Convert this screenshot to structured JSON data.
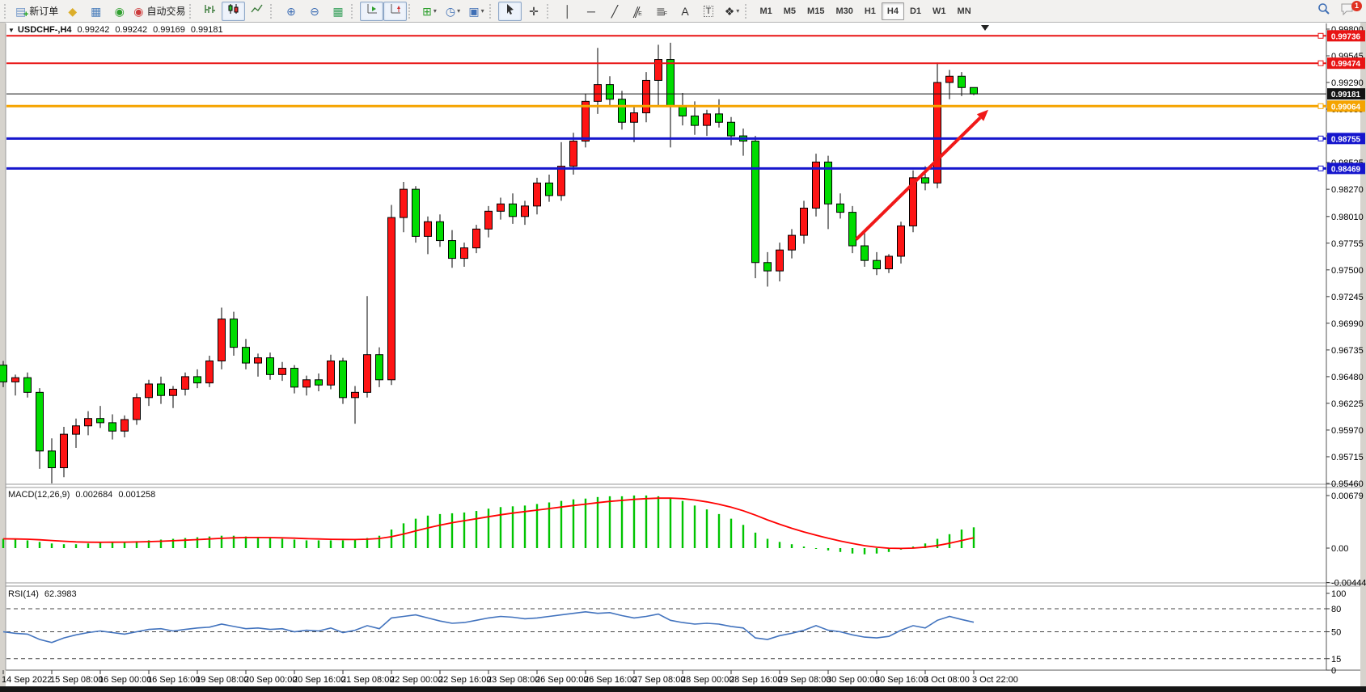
{
  "toolbar": {
    "new_order_label": "新订单",
    "autotrading_label": "自动交易",
    "timeframes": [
      "M1",
      "M5",
      "M15",
      "M30",
      "H1",
      "H4",
      "D1",
      "W1",
      "MN"
    ],
    "active_timeframe": "H4",
    "notification_count": "1",
    "groups": [
      {
        "items": [
          {
            "name": "new-order-button",
            "icon": "new-order-icon",
            "color": "#6f95c8",
            "label_key": "new_order_label",
            "plus": true
          },
          {
            "name": "favorites-button",
            "icon": "favorites-icon",
            "color": "#dcae2a"
          },
          {
            "name": "market-window-button",
            "icon": "market-window-icon",
            "color": "#4a7ebb"
          },
          {
            "name": "signals-button",
            "icon": "signals-icon",
            "color": "#2fa02f"
          },
          {
            "name": "autotrading-button",
            "icon": "autotrading-icon",
            "color": "#cc3b3b",
            "label_key": "autotrading_label"
          }
        ]
      },
      {
        "items": [
          {
            "name": "bar-chart-button",
            "svg": "bars"
          },
          {
            "name": "candlestick-chart-button",
            "svg": "candles",
            "pressed": true
          },
          {
            "name": "line-chart-button",
            "svg": "line"
          }
        ]
      },
      {
        "items": [
          {
            "name": "zoom-in-button",
            "icon": "zoom-in-icon",
            "color": "#3f6fb5"
          },
          {
            "name": "zoom-out-button",
            "icon": "zoom-out-icon",
            "color": "#3f6fb5"
          },
          {
            "name": "tile-windows-button",
            "icon": "tile-windows-icon",
            "color": "#37a05c"
          }
        ]
      },
      {
        "items": [
          {
            "name": "auto-scroll-button",
            "svg": "autoscroll",
            "pressed": true
          },
          {
            "name": "chart-shift-button",
            "svg": "chartshift",
            "pressed": true
          }
        ]
      },
      {
        "items": [
          {
            "name": "indicators-button",
            "icon": "indicators-icon",
            "color": "#2fa02f",
            "caret": true
          },
          {
            "name": "periods-button",
            "icon": "periods-icon",
            "color": "#3f6fb5",
            "caret": true
          },
          {
            "name": "templates-button",
            "icon": "templates-icon",
            "color": "#3f6fb5",
            "caret": true
          }
        ]
      },
      {
        "items": [
          {
            "name": "cursor-button",
            "svg": "cursor",
            "pressed": true
          },
          {
            "name": "crosshair-button",
            "icon": "crosshair-icon",
            "color": "#333333"
          }
        ]
      },
      {
        "items": [
          {
            "name": "vertical-line-button",
            "icon": "vertical-line-icon",
            "color": "#333333"
          },
          {
            "name": "horizontal-line-button",
            "icon": "horizontal-line-icon",
            "color": "#333333"
          },
          {
            "name": "trendline-button",
            "icon": "trendline-icon",
            "color": "#333333"
          },
          {
            "name": "channel-button",
            "icon": "channel-icon",
            "color": "#333333",
            "sub": "E",
            "skew": true
          },
          {
            "name": "fibonacci-button",
            "icon": "fibonacci-icon",
            "color": "#333333",
            "sub": "F"
          },
          {
            "name": "text-button",
            "icon": "text-icon",
            "color": "#333333"
          },
          {
            "name": "text-label-button",
            "icon": "text-label-icon",
            "color": "#333333",
            "boxed": true
          },
          {
            "name": "shapes-button",
            "icon": "shapes-icon",
            "color": "#333333",
            "caret": true
          }
        ]
      }
    ],
    "icons": {
      "new-order-icon": "▤",
      "favorites-icon": "◆",
      "market-window-icon": "▦",
      "signals-icon": "◉",
      "autotrading-icon": "◉",
      "zoom-in-icon": "⊕",
      "zoom-out-icon": "⊖",
      "tile-windows-icon": "▦",
      "indicators-icon": "⊞",
      "periods-icon": "◷",
      "templates-icon": "▣",
      "crosshair-icon": "✛",
      "vertical-line-icon": "│",
      "horizontal-line-icon": "─",
      "trendline-icon": "╱",
      "channel-icon": "∥",
      "fibonacci-icon": "≣",
      "text-icon": "A",
      "text-label-icon": "T",
      "shapes-icon": "❖",
      "caret-icon": "▾",
      "dropdown-icon": "▼"
    }
  },
  "header": {
    "dropdown": "▼",
    "symbol_period": "USDCHF-,H4",
    "open": "0.99242",
    "high": "0.99242",
    "low": "0.99169",
    "close": "0.99181"
  },
  "indicator_labels": {
    "macd_name": "MACD(12,26,9)",
    "macd_main": "0.002684",
    "macd_signal": "0.001258",
    "rsi_name": "RSI(14)",
    "rsi_value": "62.3983"
  },
  "chart_data": {
    "type": "candlestick",
    "symbol": "USDCHF-",
    "timeframe": "H4",
    "up_color": "#fe1414",
    "down_color": "#00dc00",
    "wick_color": "#000000",
    "price_range": [
      0.9546,
      0.998
    ],
    "price_axis_ticks": [
      "0.99800",
      "0.99545",
      "0.99290",
      "0.99035",
      "0.98780",
      "0.98525",
      "0.98270",
      "0.98010",
      "0.97755",
      "0.97500",
      "0.97245",
      "0.96990",
      "0.96735",
      "0.96480",
      "0.96225",
      "0.95970",
      "0.95715",
      "0.95460"
    ],
    "x_labels": [
      "14 Sep 2022",
      "15 Sep 08:00",
      "16 Sep 00:00",
      "16 Sep 16:00",
      "19 Sep 08:00",
      "20 Sep 00:00",
      "20 Sep 16:00",
      "21 Sep 08:00",
      "22 Sep 00:00",
      "22 Sep 16:00",
      "23 Sep 08:00",
      "26 Sep 00:00",
      "26 Sep 16:00",
      "27 Sep 08:00",
      "28 Sep 00:00",
      "28 Sep 16:00",
      "29 Sep 08:00",
      "30 Sep 00:00",
      "30 Sep 16:00",
      "3 Oct 08:00",
      "3 Oct 22:00"
    ],
    "candles_per_label": 4,
    "ohlc": [
      [
        0.9659,
        0.9663,
        0.9638,
        0.9643
      ],
      [
        0.9643,
        0.965,
        0.963,
        0.9647
      ],
      [
        0.9647,
        0.9652,
        0.9628,
        0.9633
      ],
      [
        0.9633,
        0.9637,
        0.956,
        0.9577
      ],
      [
        0.9577,
        0.9589,
        0.9546,
        0.9561
      ],
      [
        0.9561,
        0.96,
        0.9552,
        0.9593
      ],
      [
        0.9593,
        0.9608,
        0.958,
        0.9601
      ],
      [
        0.9601,
        0.9615,
        0.9592,
        0.9608
      ],
      [
        0.9608,
        0.962,
        0.9599,
        0.9604
      ],
      [
        0.9604,
        0.9612,
        0.9588,
        0.9596
      ],
      [
        0.9596,
        0.9611,
        0.959,
        0.9607
      ],
      [
        0.9607,
        0.9632,
        0.9602,
        0.9628
      ],
      [
        0.9628,
        0.9645,
        0.962,
        0.9641
      ],
      [
        0.9641,
        0.9648,
        0.9622,
        0.963
      ],
      [
        0.963,
        0.9639,
        0.9618,
        0.9636
      ],
      [
        0.9636,
        0.9652,
        0.963,
        0.9648
      ],
      [
        0.9648,
        0.9655,
        0.9637,
        0.9642
      ],
      [
        0.9642,
        0.9668,
        0.9638,
        0.9663
      ],
      [
        0.9663,
        0.9714,
        0.9655,
        0.9703
      ],
      [
        0.9703,
        0.971,
        0.9668,
        0.9676
      ],
      [
        0.9676,
        0.9684,
        0.9655,
        0.9661
      ],
      [
        0.9661,
        0.967,
        0.9648,
        0.9666
      ],
      [
        0.9666,
        0.9671,
        0.9645,
        0.965
      ],
      [
        0.965,
        0.9662,
        0.9644,
        0.9656
      ],
      [
        0.9656,
        0.9659,
        0.9632,
        0.9638
      ],
      [
        0.9638,
        0.9649,
        0.963,
        0.9645
      ],
      [
        0.9645,
        0.9651,
        0.9634,
        0.964
      ],
      [
        0.964,
        0.9669,
        0.9636,
        0.9663
      ],
      [
        0.9663,
        0.9666,
        0.9622,
        0.9628
      ],
      [
        0.9628,
        0.9639,
        0.9603,
        0.9633
      ],
      [
        0.9633,
        0.9725,
        0.9628,
        0.9669
      ],
      [
        0.9669,
        0.9676,
        0.9638,
        0.9645
      ],
      [
        0.9645,
        0.9812,
        0.964,
        0.98
      ],
      [
        0.98,
        0.9834,
        0.9786,
        0.9827
      ],
      [
        0.9827,
        0.983,
        0.9776,
        0.9782
      ],
      [
        0.9782,
        0.9801,
        0.9765,
        0.9796
      ],
      [
        0.9796,
        0.9803,
        0.9772,
        0.9778
      ],
      [
        0.9778,
        0.9788,
        0.9752,
        0.9761
      ],
      [
        0.9761,
        0.9776,
        0.9753,
        0.9771
      ],
      [
        0.9771,
        0.9793,
        0.9766,
        0.9789
      ],
      [
        0.9789,
        0.9811,
        0.9781,
        0.9806
      ],
      [
        0.9806,
        0.9819,
        0.9798,
        0.9813
      ],
      [
        0.9813,
        0.9823,
        0.9794,
        0.9801
      ],
      [
        0.9801,
        0.9816,
        0.9793,
        0.9811
      ],
      [
        0.9811,
        0.9838,
        0.9803,
        0.9833
      ],
      [
        0.9833,
        0.9841,
        0.9815,
        0.9821
      ],
      [
        0.9821,
        0.9872,
        0.9816,
        0.9849
      ],
      [
        0.9849,
        0.9881,
        0.9841,
        0.9873
      ],
      [
        0.9873,
        0.9918,
        0.9867,
        0.9911
      ],
      [
        0.9911,
        0.9962,
        0.9899,
        0.9927
      ],
      [
        0.9927,
        0.9935,
        0.9907,
        0.9913
      ],
      [
        0.9913,
        0.9921,
        0.9884,
        0.9891
      ],
      [
        0.9891,
        0.9906,
        0.9872,
        0.99
      ],
      [
        0.99,
        0.9939,
        0.9891,
        0.9931
      ],
      [
        0.9931,
        0.9965,
        0.9906,
        0.9951
      ],
      [
        0.9951,
        0.9967,
        0.9867,
        0.9906
      ],
      [
        0.9906,
        0.9919,
        0.9888,
        0.9897
      ],
      [
        0.9897,
        0.9911,
        0.9879,
        0.9888
      ],
      [
        0.9888,
        0.9903,
        0.9878,
        0.9899
      ],
      [
        0.9899,
        0.9913,
        0.9886,
        0.9891
      ],
      [
        0.9891,
        0.9896,
        0.9869,
        0.9878
      ],
      [
        0.9878,
        0.9885,
        0.9859,
        0.9873
      ],
      [
        0.9873,
        0.9878,
        0.9742,
        0.9757
      ],
      [
        0.9757,
        0.9767,
        0.9734,
        0.9749
      ],
      [
        0.9749,
        0.9776,
        0.9739,
        0.9769
      ],
      [
        0.9769,
        0.9789,
        0.9761,
        0.9783
      ],
      [
        0.9783,
        0.9816,
        0.9775,
        0.9809
      ],
      [
        0.9809,
        0.9861,
        0.9801,
        0.9853
      ],
      [
        0.9853,
        0.9859,
        0.9789,
        0.9813
      ],
      [
        0.9813,
        0.9823,
        0.9799,
        0.9805
      ],
      [
        0.9805,
        0.9811,
        0.9766,
        0.9773
      ],
      [
        0.9773,
        0.9785,
        0.9753,
        0.9759
      ],
      [
        0.9759,
        0.9767,
        0.9745,
        0.9751
      ],
      [
        0.9751,
        0.9765,
        0.9747,
        0.9763
      ],
      [
        0.9763,
        0.9796,
        0.9756,
        0.9792
      ],
      [
        0.9792,
        0.9845,
        0.9786,
        0.9838
      ],
      [
        0.9838,
        0.9849,
        0.9826,
        0.9833
      ],
      [
        0.9833,
        0.9948,
        0.9828,
        0.9929
      ],
      [
        0.9929,
        0.9941,
        0.9913,
        0.9935
      ],
      [
        0.9935,
        0.9939,
        0.9916,
        0.99242
      ],
      [
        0.99242,
        0.99242,
        0.99169,
        0.99181
      ]
    ],
    "h_lines": [
      {
        "price": 0.99736,
        "label": "0.99736",
        "color": "#e81414",
        "width": 2
      },
      {
        "price": 0.99474,
        "label": "0.99474",
        "color": "#e81414",
        "width": 2
      },
      {
        "price": 0.99181,
        "label": "0.99181",
        "color": "#141414",
        "width": 1
      },
      {
        "price": 0.99064,
        "label": "0.99064",
        "color": "#f5a400",
        "width": 3
      },
      {
        "price": 0.98755,
        "label": "0.98755",
        "color": "#1616cd",
        "width": 3
      },
      {
        "price": 0.98469,
        "label": "0.98469",
        "color": "#1616cd",
        "width": 3
      }
    ],
    "trend_arrow": {
      "from_candle": 70.3,
      "from_price": 0.9779,
      "to_candle": 81.2,
      "to_price": 0.9903,
      "color": "#f01818",
      "width": 4
    },
    "indicators": [
      {
        "name": "MACD",
        "axis_ticks": [
          "0.00679",
          "0.00",
          "-0.004442"
        ],
        "axis_values": [
          0.00679,
          0.0,
          -0.004442
        ],
        "hist_color": "#00c400",
        "signal_color": "#ff0000",
        "histogram": [
          0.0012,
          0.0011,
          0.001,
          0.0008,
          0.0006,
          0.0005,
          0.0005,
          0.0006,
          0.0007,
          0.0008,
          0.0008,
          0.0009,
          0.001,
          0.0011,
          0.0012,
          0.0013,
          0.0014,
          0.0015,
          0.0016,
          0.0016,
          0.0015,
          0.0014,
          0.0013,
          0.0012,
          0.0011,
          0.001,
          0.001,
          0.001,
          0.001,
          0.0011,
          0.0013,
          0.0016,
          0.0024,
          0.0032,
          0.0038,
          0.0042,
          0.0044,
          0.0045,
          0.0046,
          0.0048,
          0.0051,
          0.0053,
          0.0054,
          0.0055,
          0.0057,
          0.0059,
          0.0061,
          0.0063,
          0.0064,
          0.0066,
          0.0067,
          0.0067,
          0.0068,
          0.0068,
          0.0067,
          0.0065,
          0.0061,
          0.0055,
          0.005,
          0.0044,
          0.0038,
          0.003,
          0.002,
          0.0012,
          0.0008,
          0.0005,
          0.0002,
          0.0,
          -0.0003,
          -0.0005,
          -0.0007,
          -0.0008,
          -0.0007,
          -0.0005,
          -0.0002,
          0.0002,
          0.0006,
          0.0012,
          0.0018,
          0.0024,
          0.002684
        ]
      },
      {
        "name": "RSI",
        "axis_ticks": [
          "100",
          "80",
          "50",
          "15",
          "0"
        ],
        "axis_values": [
          100,
          80,
          50,
          15,
          0
        ],
        "dashed_levels": [
          80,
          50,
          15
        ],
        "line_color": "#4273be",
        "values": [
          50,
          48,
          47,
          40,
          36,
          42,
          46,
          49,
          51,
          49,
          47,
          50,
          53,
          54,
          51,
          53,
          55,
          56,
          60,
          57,
          54,
          55,
          53,
          54,
          50,
          52,
          51,
          55,
          49,
          52,
          58,
          54,
          68,
          70,
          72,
          68,
          64,
          61,
          62,
          65,
          68,
          70,
          69,
          67,
          68,
          70,
          72,
          74,
          76,
          74,
          75,
          71,
          68,
          70,
          73,
          65,
          62,
          60,
          61,
          60,
          57,
          55,
          42,
          40,
          45,
          48,
          52,
          58,
          52,
          50,
          46,
          43,
          42,
          44,
          52,
          58,
          55,
          65,
          70,
          66,
          62.4
        ]
      }
    ]
  }
}
